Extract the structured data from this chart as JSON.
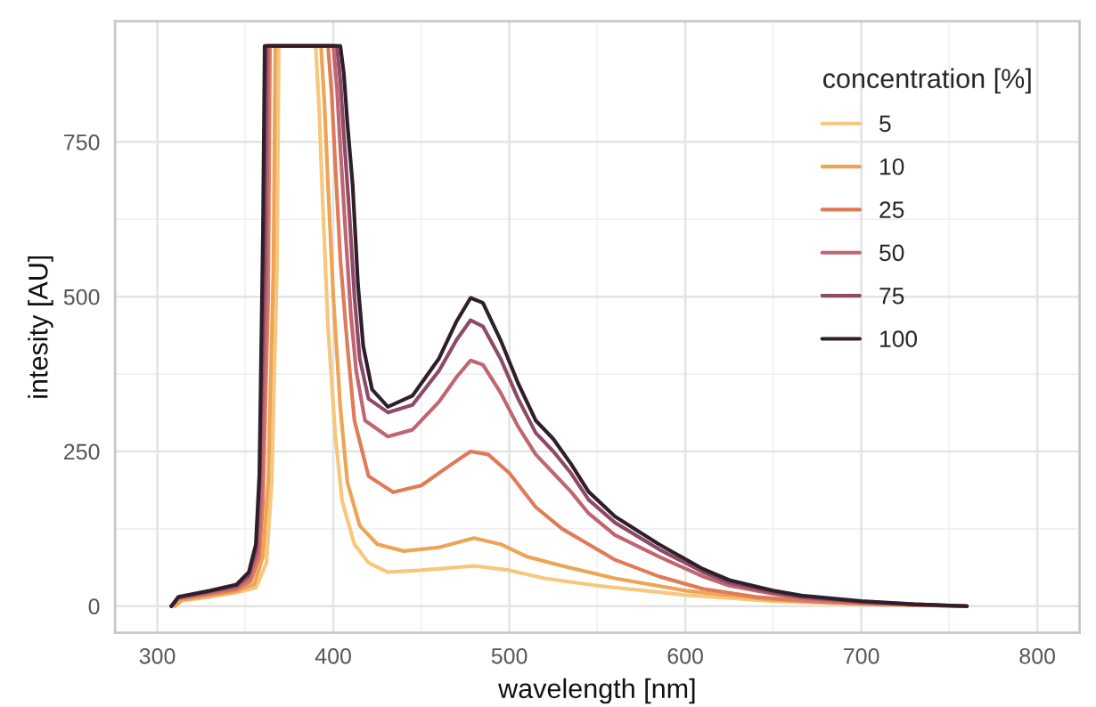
{
  "chart_data": {
    "type": "line",
    "xlabel": "wavelength [nm]",
    "ylabel": "intesity [AU]",
    "legend_title": "concentration [%]",
    "xlim": [
      276,
      824
    ],
    "ylim": [
      -43,
      945
    ],
    "xticks": [
      300,
      400,
      500,
      600,
      700,
      800
    ],
    "yticks": [
      0,
      250,
      500,
      750
    ],
    "grid": true,
    "legend": "top right",
    "series": [
      {
        "name": "5",
        "color": "#f6c77d",
        "x": [
          310,
          314,
          330,
          345,
          356,
          362,
          365,
          368,
          369,
          390,
          392,
          394,
          397,
          401,
          405,
          412,
          420,
          431,
          450,
          480,
          500,
          520,
          550,
          600,
          650,
          700,
          760
        ],
        "values": [
          0,
          9,
          15,
          22,
          30,
          70,
          200,
          550,
          905,
          905,
          800,
          650,
          450,
          280,
          170,
          100,
          70,
          55,
          58,
          65,
          58,
          45,
          33,
          18,
          8,
          3,
          0
        ]
      },
      {
        "name": "10",
        "color": "#eea455",
        "x": [
          310,
          314,
          330,
          345,
          355,
          360,
          363,
          366,
          367,
          393,
          395,
          397,
          400,
          404,
          408,
          415,
          425,
          440,
          460,
          480,
          495,
          510,
          530,
          560,
          600,
          650,
          700,
          760
        ],
        "values": [
          0,
          10,
          17,
          24,
          35,
          80,
          200,
          550,
          905,
          905,
          810,
          680,
          500,
          320,
          200,
          130,
          100,
          89,
          95,
          110,
          100,
          80,
          65,
          45,
          25,
          10,
          4,
          0
        ]
      },
      {
        "name": "25",
        "color": "#e07b58",
        "x": [
          308,
          312,
          330,
          345,
          353,
          358,
          360,
          363,
          364,
          397,
          399,
          401,
          404,
          408,
          412,
          420,
          434,
          450,
          465,
          478,
          488,
          500,
          515,
          530,
          545,
          560,
          585,
          610,
          640,
          670,
          700,
          730,
          760
        ],
        "values": [
          0,
          12,
          20,
          27,
          40,
          80,
          170,
          500,
          905,
          905,
          830,
          720,
          560,
          420,
          300,
          210,
          184,
          195,
          225,
          250,
          245,
          215,
          160,
          125,
          100,
          75,
          48,
          28,
          15,
          8,
          4,
          2,
          0
        ]
      },
      {
        "name": "50",
        "color": "#bf6672",
        "x": [
          308,
          312,
          330,
          345,
          352,
          357,
          359,
          362,
          363,
          400,
          402,
          404,
          407,
          410,
          413,
          418,
          431,
          445,
          460,
          470,
          478,
          485,
          495,
          505,
          515,
          525,
          535,
          545,
          560,
          585,
          610,
          625,
          650,
          666,
          700,
          730,
          760
        ],
        "values": [
          0,
          13,
          22,
          30,
          45,
          85,
          180,
          520,
          905,
          905,
          840,
          740,
          600,
          470,
          380,
          300,
          274,
          285,
          330,
          370,
          397,
          390,
          345,
          290,
          245,
          215,
          185,
          150,
          115,
          80,
          48,
          33,
          20,
          13,
          6,
          2,
          0
        ]
      },
      {
        "name": "75",
        "color": "#8e4a66",
        "x": [
          308,
          312,
          330,
          345,
          352,
          356,
          358,
          361,
          362,
          380,
          402,
          404,
          406,
          409,
          412,
          415,
          420,
          431,
          445,
          460,
          470,
          478,
          485,
          495,
          505,
          515,
          525,
          535,
          545,
          560,
          585,
          610,
          625,
          650,
          666,
          700,
          730,
          760
        ],
        "values": [
          0,
          14,
          24,
          33,
          50,
          90,
          190,
          560,
          905,
          905,
          905,
          850,
          760,
          640,
          500,
          400,
          335,
          313,
          325,
          380,
          430,
          462,
          452,
          400,
          335,
          280,
          250,
          215,
          172,
          135,
          92,
          55,
          38,
          22,
          15,
          7,
          3,
          0
        ]
      },
      {
        "name": "100",
        "color": "#2f1f2b",
        "x": [
          308,
          312,
          330,
          345,
          352,
          356,
          358,
          360,
          361,
          380,
          404,
          406,
          408,
          411,
          414,
          417,
          422,
          431,
          445,
          460,
          470,
          478,
          485,
          495,
          505,
          515,
          525,
          535,
          545,
          560,
          585,
          610,
          625,
          650,
          666,
          700,
          730,
          760
        ],
        "values": [
          0,
          15,
          25,
          35,
          55,
          100,
          213,
          600,
          905,
          905,
          905,
          860,
          780,
          680,
          520,
          420,
          350,
          322,
          340,
          400,
          460,
          498,
          490,
          430,
          360,
          300,
          270,
          230,
          185,
          145,
          100,
          60,
          42,
          25,
          17,
          8,
          3,
          0
        ]
      }
    ]
  }
}
